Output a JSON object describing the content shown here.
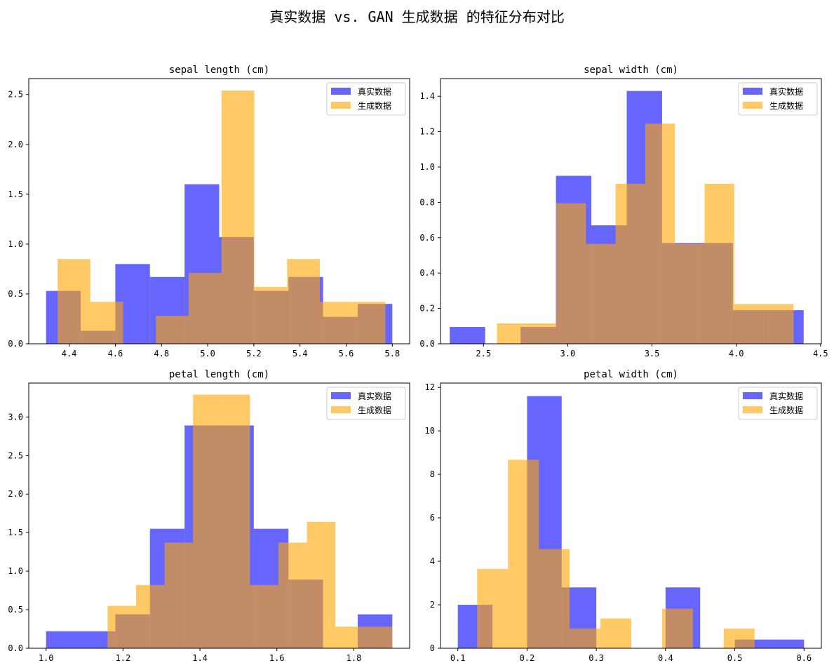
{
  "figure": {
    "title": "真实数据 vs. GAN 生成数据 的特征分布对比"
  },
  "colors": {
    "real": "#0000ff",
    "gen": "#ffa500",
    "overlap": "#bf8a66"
  },
  "chart_data": [
    {
      "type": "histogram",
      "title": "sepal length (cm)",
      "xlim": [
        4.225,
        5.875
      ],
      "ylim": [
        0,
        2.66
      ],
      "xticks": [
        4.4,
        4.6,
        4.8,
        5.0,
        5.2,
        5.4,
        5.6,
        5.8
      ],
      "xtick_labels": [
        "4.4",
        "4.6",
        "4.8",
        "5.0",
        "5.2",
        "5.4",
        "5.6",
        "5.8"
      ],
      "yticks": [
        0.0,
        0.5,
        1.0,
        1.5,
        2.0,
        2.5
      ],
      "ytick_labels": [
        "0.0",
        "0.5",
        "1.0",
        "1.5",
        "2.0",
        "2.5"
      ],
      "series": [
        {
          "name": "真实数据",
          "color": "#0000ff",
          "edges": [
            4.3,
            4.45,
            4.6,
            4.75,
            4.9,
            5.05,
            5.2,
            5.35,
            5.5,
            5.65,
            5.8
          ],
          "values": [
            0.53,
            0.13,
            0.8,
            0.67,
            1.6,
            1.07,
            0.53,
            0.67,
            0.27,
            0.4
          ]
        },
        {
          "name": "生成数据",
          "color": "#ffa500",
          "edges": [
            4.35,
            4.492,
            4.634,
            4.776,
            4.918,
            5.06,
            5.202,
            5.344,
            5.486,
            5.628,
            5.77
          ],
          "values": [
            0.85,
            0.42,
            0.0,
            0.28,
            0.71,
            2.54,
            0.57,
            0.85,
            0.42,
            0.42
          ]
        }
      ],
      "legend": {
        "position": "top-right",
        "entries": [
          "真实数据",
          "生成数据"
        ]
      }
    },
    {
      "type": "histogram",
      "title": "sepal width (cm)",
      "xlim": [
        2.245,
        4.505
      ],
      "ylim": [
        0,
        1.5
      ],
      "xticks": [
        2.5,
        3.0,
        3.5,
        4.0,
        4.5
      ],
      "xtick_labels": [
        "2.5",
        "3.0",
        "3.5",
        "4.0",
        "4.5"
      ],
      "yticks": [
        0.0,
        0.2,
        0.4,
        0.6,
        0.8,
        1.0,
        1.2,
        1.4
      ],
      "ytick_labels": [
        "0.0",
        "0.2",
        "0.4",
        "0.6",
        "0.8",
        "1.0",
        "1.2",
        "1.4"
      ],
      "series": [
        {
          "name": "真实数据",
          "color": "#0000ff",
          "edges": [
            2.3,
            2.51,
            2.72,
            2.93,
            3.14,
            3.35,
            3.56,
            3.77,
            3.98,
            4.19,
            4.4
          ],
          "values": [
            0.095,
            0.0,
            0.095,
            0.95,
            0.67,
            1.43,
            0.57,
            0.57,
            0.19,
            0.19
          ]
        },
        {
          "name": "生成数据",
          "color": "#ffa500",
          "edges": [
            2.58,
            2.756,
            2.932,
            3.108,
            3.284,
            3.46,
            3.636,
            3.812,
            3.988,
            4.164,
            4.34
          ],
          "values": [
            0.115,
            0.115,
            0.795,
            0.565,
            0.905,
            1.245,
            0.565,
            0.905,
            0.225,
            0.225
          ]
        }
      ],
      "legend": {
        "position": "top-right",
        "entries": [
          "真实数据",
          "生成数据"
        ]
      }
    },
    {
      "type": "histogram",
      "title": "petal length (cm)",
      "xlim": [
        0.955,
        1.945
      ],
      "ylim": [
        0,
        3.44
      ],
      "xticks": [
        1.0,
        1.2,
        1.4,
        1.6,
        1.8
      ],
      "xtick_labels": [
        "1.0",
        "1.2",
        "1.4",
        "1.6",
        "1.8"
      ],
      "yticks": [
        0.0,
        0.5,
        1.0,
        1.5,
        2.0,
        2.5,
        3.0
      ],
      "ytick_labels": [
        "0.0",
        "0.5",
        "1.0",
        "1.5",
        "2.0",
        "2.5",
        "3.0"
      ],
      "series": [
        {
          "name": "真实数据",
          "color": "#0000ff",
          "edges": [
            1.0,
            1.09,
            1.18,
            1.27,
            1.36,
            1.45,
            1.54,
            1.63,
            1.72,
            1.81,
            1.9
          ],
          "values": [
            0.22,
            0.22,
            0.44,
            1.55,
            2.89,
            2.89,
            1.55,
            0.89,
            0.0,
            0.44
          ]
        },
        {
          "name": "生成数据",
          "color": "#ffa500",
          "edges": [
            1.16,
            1.234,
            1.308,
            1.382,
            1.456,
            1.53,
            1.604,
            1.678,
            1.752,
            1.826,
            1.9
          ],
          "values": [
            0.55,
            0.82,
            1.37,
            3.29,
            3.29,
            0.82,
            1.37,
            1.64,
            0.28,
            0.28
          ]
        }
      ],
      "legend": {
        "position": "top-right",
        "entries": [
          "真实数据",
          "生成数据"
        ]
      }
    },
    {
      "type": "histogram",
      "title": "petal width (cm)",
      "xlim": [
        0.075,
        0.625
      ],
      "ylim": [
        0,
        12.2
      ],
      "xticks": [
        0.1,
        0.2,
        0.3,
        0.4,
        0.5,
        0.6
      ],
      "xtick_labels": [
        "0.1",
        "0.2",
        "0.3",
        "0.4",
        "0.5",
        "0.6"
      ],
      "yticks": [
        0,
        2,
        4,
        6,
        8,
        10,
        12
      ],
      "ytick_labels": [
        "0",
        "2",
        "4",
        "6",
        "8",
        "10",
        "12"
      ],
      "series": [
        {
          "name": "真实数据",
          "color": "#0000ff",
          "edges": [
            0.1,
            0.15,
            0.2,
            0.25,
            0.3,
            0.35,
            0.4,
            0.45,
            0.5,
            0.55,
            0.6
          ],
          "values": [
            2.0,
            0.0,
            11.6,
            2.8,
            0.0,
            0.0,
            2.8,
            0.0,
            0.4,
            0.4
          ]
        },
        {
          "name": "生成数据",
          "color": "#ffa500",
          "edges": [
            0.128,
            0.1725,
            0.217,
            0.2615,
            0.306,
            0.3505,
            0.395,
            0.4395,
            0.484,
            0.5285,
            0.573
          ],
          "values": [
            3.65,
            8.67,
            4.56,
            0.91,
            1.37,
            0.0,
            1.82,
            0.0,
            0.91,
            0.0
          ]
        }
      ],
      "legend": {
        "position": "top-right",
        "entries": [
          "真实数据",
          "生成数据"
        ]
      }
    }
  ]
}
